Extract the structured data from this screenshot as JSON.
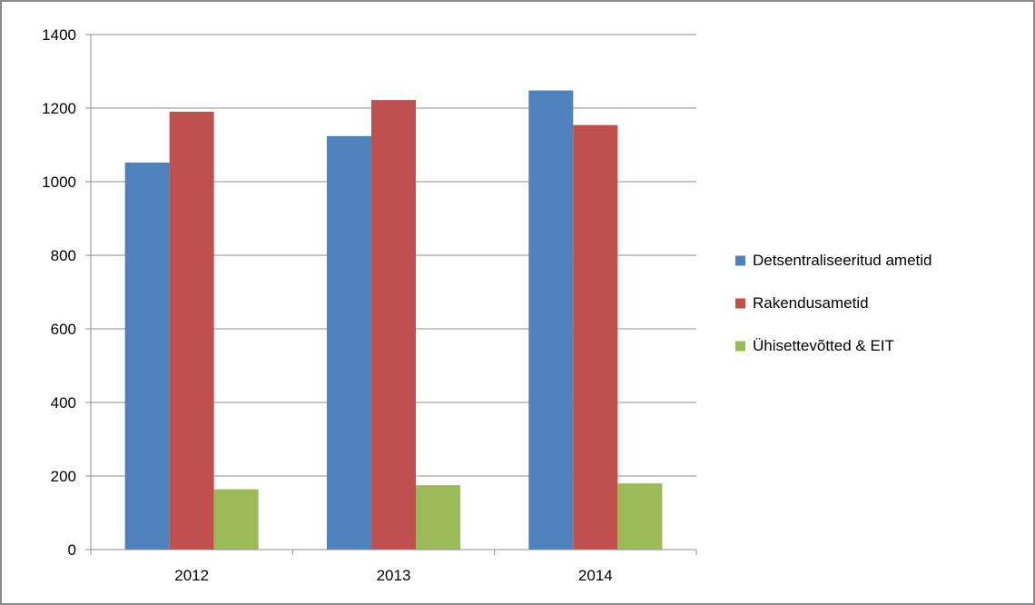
{
  "chart_data": {
    "type": "bar",
    "title": "",
    "xlabel": "",
    "ylabel": "",
    "categories": [
      "2012",
      "2013",
      "2014"
    ],
    "series": [
      {
        "name": "Detsentraliseeritud ametid",
        "values": [
          1052,
          1124,
          1248
        ],
        "color": "#4f81bd"
      },
      {
        "name": "Rakendusametid",
        "values": [
          1190,
          1222,
          1154
        ],
        "color": "#c0504d"
      },
      {
        "name": "Ühisettevõtted & EIT",
        "values": [
          164,
          175,
          180
        ],
        "color": "#9bbb59"
      }
    ],
    "ylim": [
      0,
      1400
    ],
    "yticks": [
      0,
      200,
      400,
      600,
      800,
      1000,
      1200,
      1400
    ],
    "grid": true,
    "legend_position": "right"
  }
}
